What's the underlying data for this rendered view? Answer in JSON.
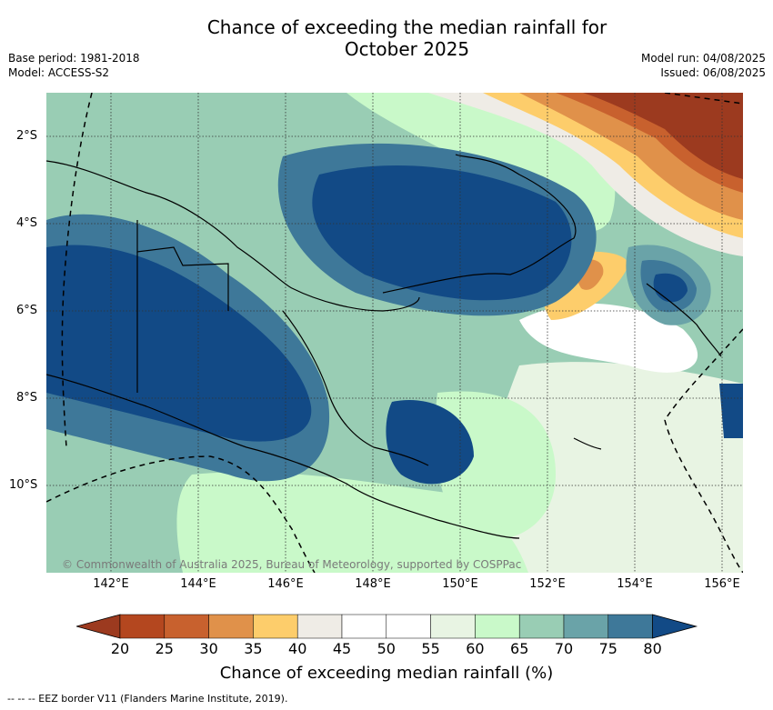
{
  "title_line1": "Chance of exceeding the median rainfall for",
  "title_line2": "October 2025",
  "base_period": "Base period: 1981-2018",
  "model": "Model: ACCESS-S2",
  "model_run": "Model run: 04/08/2025",
  "issued": "Issued: 06/08/2025",
  "copyright": "© Commonwealth of Australia 2025, Bureau of Meteorology, supported by COSPPac",
  "lat_labels": [
    "2°S",
    "4°S",
    "6°S",
    "8°S",
    "10°S"
  ],
  "lon_labels": [
    "142°E",
    "144°E",
    "146°E",
    "148°E",
    "150°E",
    "152°E",
    "154°E",
    "156°E"
  ],
  "colorbar": {
    "ticks": [
      "20",
      "25",
      "30",
      "35",
      "40",
      "45",
      "50",
      "55",
      "60",
      "65",
      "70",
      "75",
      "80"
    ],
    "colors": [
      "#9c3a1f",
      "#b4471f",
      "#c8612e",
      "#e0914a",
      "#fdcd6b",
      "#efece6",
      "#ffffff",
      "#ffffff",
      "#e8f4e3",
      "#c9f9c9",
      "#99cdb4",
      "#6aa3a8",
      "#3e7899",
      "#124a86"
    ],
    "label": "Chance of exceeding median rainfall (%)"
  },
  "eez_note": "--  --  -- EEZ border V11 (Flanders Marine Institute, 2019).",
  "colors": {
    "dark_blue": "#124a86",
    "blue": "#3e7899",
    "teal": "#6aa3a8",
    "sea_green": "#99cdb4",
    "light_green": "#c9f9c9",
    "pale_green": "#e8f4e3",
    "dark_red": "#9c3a1f",
    "orange": "#e0914a",
    "yellow": "#fdcd6b"
  }
}
